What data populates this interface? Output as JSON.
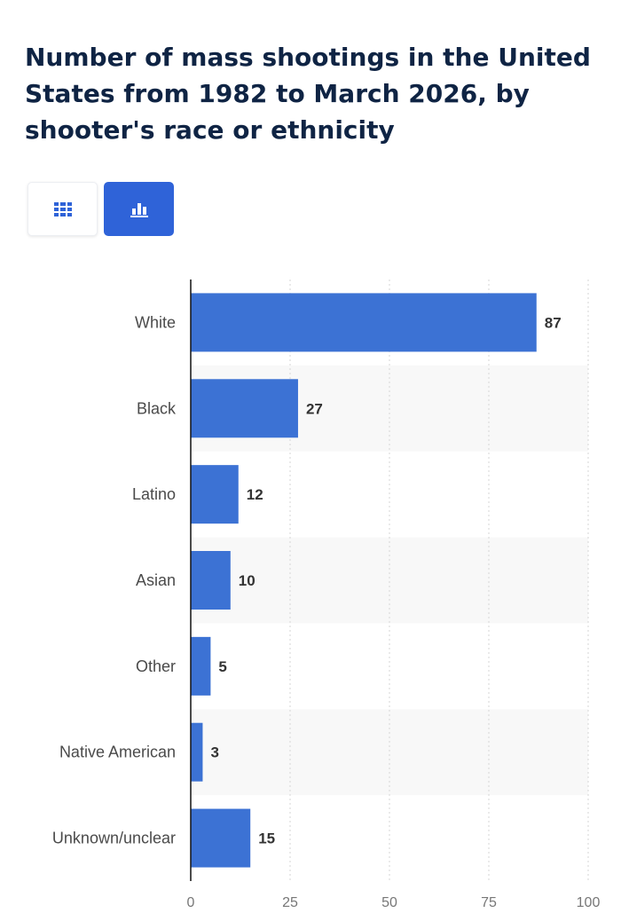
{
  "title": "Number of mass shootings in the United States from 1982 to March 2026, by shooter's race or ethnicity",
  "toolbar": {
    "table_icon": "grid-icon",
    "chart_icon": "bar-chart-icon"
  },
  "colors": {
    "bar": "#3c72d4",
    "title": "#0f2444",
    "toggle_active": "#2f63d8"
  },
  "chart_data": {
    "type": "bar",
    "orientation": "horizontal",
    "categories": [
      "White",
      "Black",
      "Latino",
      "Asian",
      "Other",
      "Native American",
      "Unknown/unclear"
    ],
    "values": [
      87,
      27,
      12,
      10,
      5,
      3,
      15
    ],
    "xlim": [
      0,
      100
    ],
    "xticks": [
      0,
      25,
      50,
      75,
      100
    ],
    "grid": "vertical dashed",
    "data_labels": true
  }
}
